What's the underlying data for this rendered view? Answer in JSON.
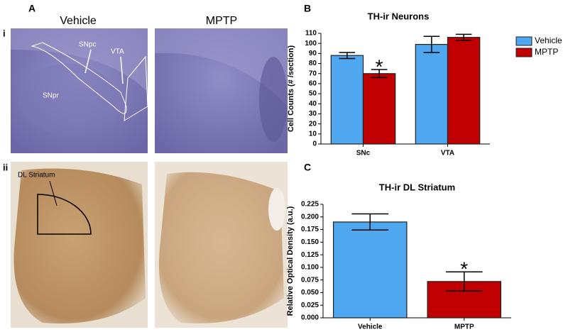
{
  "figure": {
    "panel_a": "A",
    "panel_b": "B",
    "panel_c": "C",
    "col_vehicle": "Vehicle",
    "col_mptp": "MPTP",
    "row_i": "i",
    "row_ii": "ii",
    "snpc": "SNpc",
    "vta": "VTA",
    "snpr": "SNpr",
    "dl_striatum": "DL Striatum"
  },
  "chart_data": [
    {
      "type": "bar",
      "title": "TH-ir Neurons",
      "ylabel": "Cell Counts (# /section)",
      "categories": [
        "SNc",
        "VTA"
      ],
      "series": [
        {
          "name": "Vehicle",
          "color": "#4fa7f0",
          "values": [
            88,
            99
          ],
          "errors": [
            3,
            8
          ]
        },
        {
          "name": "MPTP",
          "color": "#c00000",
          "values": [
            70,
            106
          ],
          "errors": [
            4,
            3
          ]
        }
      ],
      "ylim": [
        0,
        110
      ],
      "yticks": [
        0,
        10,
        20,
        30,
        40,
        50,
        60,
        70,
        80,
        90,
        100,
        110
      ],
      "legend": "right",
      "annotations": [
        "*"
      ]
    },
    {
      "type": "bar",
      "title": "TH-ir DL Striatum",
      "ylabel": "Relative Optical Density (a.u.)",
      "categories": [
        "Vehicle",
        "MPTP"
      ],
      "values": [
        0.19,
        0.072
      ],
      "errors": [
        0.016,
        0.019
      ],
      "colors": [
        "#4fa7f0",
        "#c00000"
      ],
      "ylim": [
        0,
        0.225
      ],
      "yticks": [
        {
          "value": 0,
          "label": "0.000"
        },
        {
          "value": 0.025,
          "label": "0.025"
        },
        {
          "value": 0.05,
          "label": "0.050"
        },
        {
          "value": 0.075,
          "label": "0.075"
        },
        {
          "value": 0.1,
          "label": "0.100"
        },
        {
          "value": 0.125,
          "label": "0.125"
        },
        {
          "value": 0.15,
          "label": "0.150"
        },
        {
          "value": 0.175,
          "label": "0.175"
        },
        {
          "value": 0.2,
          "label": "0.200"
        },
        {
          "value": 0.225,
          "label": "0.225"
        }
      ],
      "annotations": [
        "*"
      ]
    }
  ]
}
